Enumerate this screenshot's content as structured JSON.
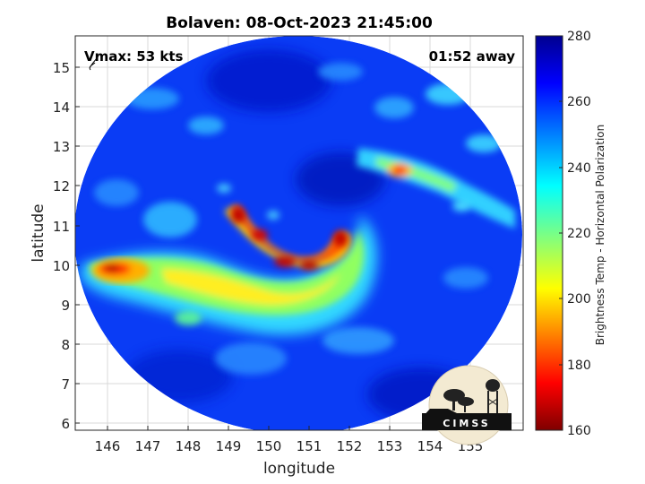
{
  "title": "Bolaven: 08-Oct-2023 21:45:00",
  "vmax_label": "Vmax: 53 kts",
  "time_label": "01:52 away",
  "xlabel": "longitude",
  "ylabel": "latitude",
  "colorbar_label": "Brightness Temp - Horizontal Polarization",
  "logo_text": "CIMSS",
  "x_ticks": [
    "146",
    "147",
    "148",
    "149",
    "150",
    "151",
    "152",
    "153",
    "154",
    "155"
  ],
  "y_ticks": [
    "15",
    "14",
    "13",
    "12",
    "11",
    "10",
    "9",
    "8",
    "7",
    "6"
  ],
  "colorbar_ticks": [
    "280",
    "260",
    "240",
    "220",
    "200",
    "180",
    "160"
  ],
  "colors": {
    "cold": "#7f0000",
    "red": "#ff2000",
    "yellow": "#ffff00",
    "cyan": "#00ffff",
    "blue": "#0050ff",
    "deep_blue": "#00008f"
  }
}
